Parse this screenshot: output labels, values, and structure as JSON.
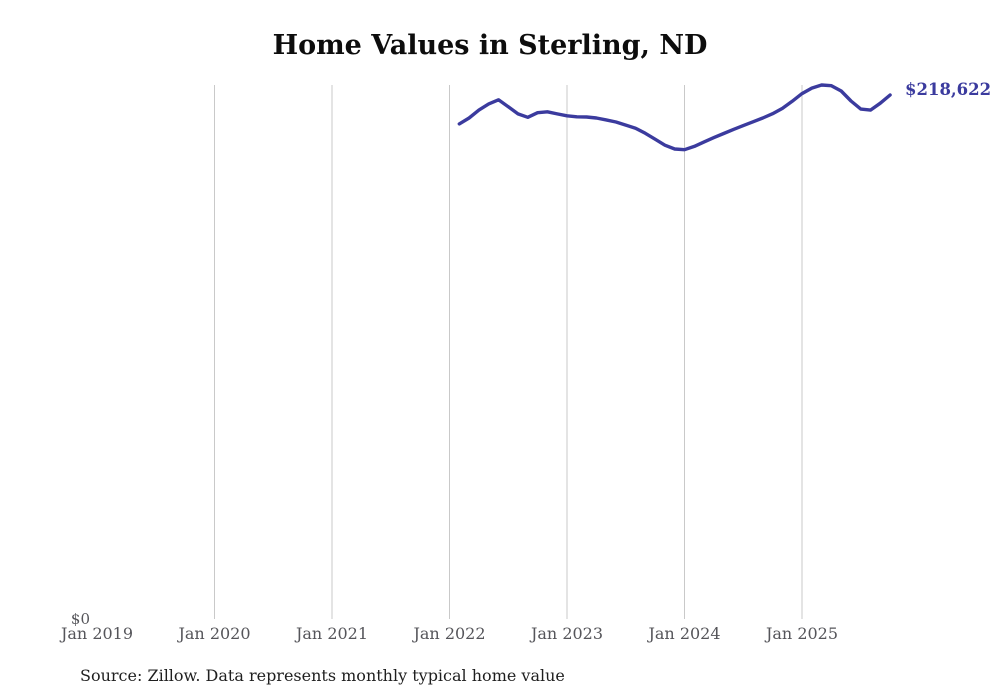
{
  "title": "Home Values in Sterling, ND",
  "source_note": "Source: Zillow. Data represents monthly typical home value",
  "end_value_label": "$218,622",
  "y_axis": {
    "zero_label": "$0"
  },
  "x_axis": {
    "ticks": [
      {
        "label": "Jan 2019",
        "year": 2019,
        "gridline": false
      },
      {
        "label": "Jan 2020",
        "year": 2020,
        "gridline": true
      },
      {
        "label": "Jan 2021",
        "year": 2021,
        "gridline": true
      },
      {
        "label": "Jan 2022",
        "year": 2022,
        "gridline": true
      },
      {
        "label": "Jan 2023",
        "year": 2023,
        "gridline": true
      },
      {
        "label": "Jan 2024",
        "year": 2024,
        "gridline": true
      },
      {
        "label": "Jan 2025",
        "year": 2025,
        "gridline": true
      }
    ]
  },
  "colors": {
    "line": "#3b3b9e",
    "end_label": "#3b3b9e",
    "grid": "#c9c9c9",
    "axis_text": "#55555a",
    "title_text": "#0d0d0d",
    "source_text": "#1f1f1f",
    "background": "#ffffff"
  },
  "chart_data": {
    "type": "line",
    "title": "Home Values in Sterling, ND",
    "xlabel": "",
    "ylabel": "",
    "ylim": [
      0,
      230000
    ],
    "x_range": [
      "2019-01",
      "2025-11"
    ],
    "grid": "vertical-yearly",
    "legend": "none",
    "final_value_label": "$218,622",
    "x": [
      "2022-02",
      "2022-03",
      "2022-04",
      "2022-05",
      "2022-06",
      "2022-07",
      "2022-08",
      "2022-09",
      "2022-10",
      "2022-11",
      "2022-12",
      "2023-01",
      "2023-02",
      "2023-03",
      "2023-04",
      "2023-05",
      "2023-06",
      "2023-07",
      "2023-08",
      "2023-09",
      "2023-10",
      "2023-11",
      "2023-12",
      "2024-01",
      "2024-02",
      "2024-03",
      "2024-04",
      "2024-05",
      "2024-06",
      "2024-07",
      "2024-08",
      "2024-09",
      "2024-10",
      "2024-11",
      "2024-12",
      "2025-01",
      "2025-02",
      "2025-03",
      "2025-04",
      "2025-05",
      "2025-06",
      "2025-07",
      "2025-08",
      "2025-09",
      "2025-10"
    ],
    "values": [
      206500,
      209000,
      212300,
      214900,
      216600,
      213700,
      210700,
      209300,
      211200,
      211600,
      210700,
      209900,
      209500,
      209400,
      209000,
      208200,
      207300,
      206000,
      204700,
      202600,
      200100,
      197600,
      196000,
      195700,
      197100,
      199000,
      200800,
      202500,
      204200,
      205800,
      207400,
      209000,
      210800,
      213000,
      216000,
      219200,
      221500,
      222800,
      222500,
      220300,
      216100,
      212700,
      212300,
      215200,
      218622
    ],
    "series": [
      {
        "name": "Typical home value",
        "values": [
          206500,
          209000,
          212300,
          214900,
          216600,
          213700,
          210700,
          209300,
          211200,
          211600,
          210700,
          209900,
          209500,
          209400,
          209000,
          208200,
          207300,
          206000,
          204700,
          202600,
          200100,
          197600,
          196000,
          195700,
          197100,
          199000,
          200800,
          202500,
          204200,
          205800,
          207400,
          209000,
          210800,
          213000,
          216000,
          219200,
          221500,
          222800,
          222500,
          220300,
          216100,
          212700,
          212300,
          215200,
          218622
        ]
      }
    ]
  }
}
